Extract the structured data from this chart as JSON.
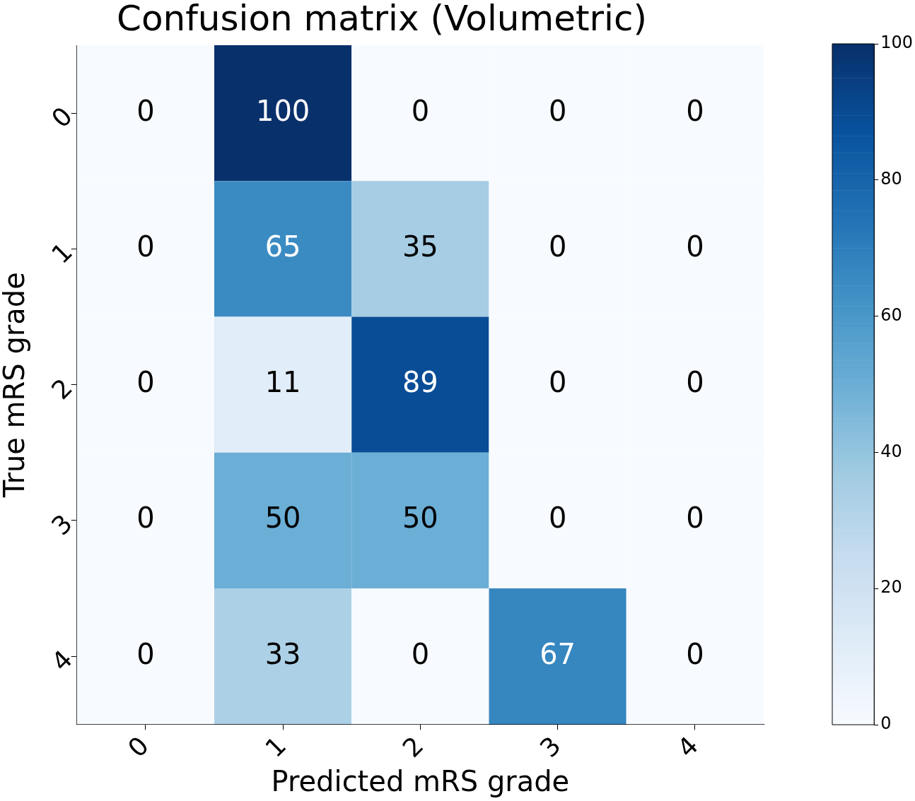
{
  "chart_data": {
    "type": "heatmap",
    "title": "Confusion matrix (Volumetric)",
    "xlabel": "Predicted mRS grade",
    "ylabel": "True mRS grade",
    "categories": [
      "0",
      "1",
      "2",
      "3",
      "4"
    ],
    "y_categories": [
      "0",
      "1",
      "2",
      "3",
      "4"
    ],
    "cells": [
      [
        0,
        100,
        0,
        0,
        0
      ],
      [
        0,
        65,
        35,
        0,
        0
      ],
      [
        0,
        11,
        89,
        0,
        0
      ],
      [
        0,
        50,
        50,
        0,
        0
      ],
      [
        0,
        33,
        0,
        67,
        0
      ]
    ],
    "data_labels": true,
    "clim": [
      0,
      100
    ],
    "cticks": [
      0,
      20,
      40,
      60,
      80,
      100
    ]
  }
}
